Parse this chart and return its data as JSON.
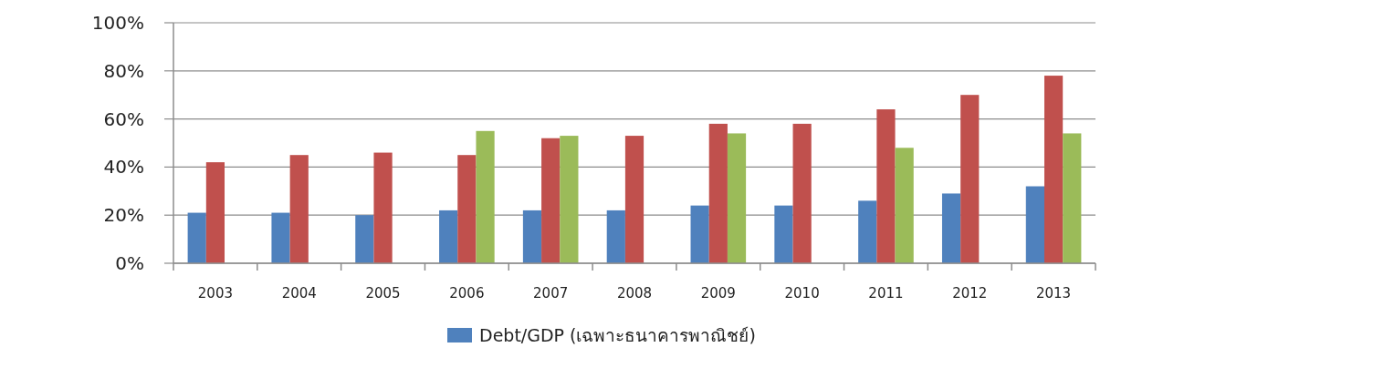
{
  "chart_data": {
    "type": "bar",
    "categories": [
      "2003",
      "2004",
      "2005",
      "2006",
      "2007",
      "2008",
      "2009",
      "2010",
      "2011",
      "2012",
      "2013"
    ],
    "series": [
      {
        "name": "Debt/GDP (เฉพาะธนาคารพาณิชย์)",
        "color": "#4f81bd",
        "values": [
          21,
          21,
          20,
          22,
          22,
          22,
          24,
          24,
          26,
          29,
          32
        ]
      },
      {
        "color": "#c0504d",
        "values": [
          42,
          45,
          46,
          45,
          52,
          53,
          58,
          58,
          64,
          70,
          78
        ]
      },
      {
        "color": "#9bbb59",
        "values": [
          null,
          null,
          null,
          55,
          53,
          null,
          54,
          null,
          48,
          null,
          54
        ]
      }
    ],
    "ylim": [
      0,
      100
    ],
    "yticks": [
      {
        "value": 0,
        "label": "0%"
      },
      {
        "value": 20,
        "label": "20%"
      },
      {
        "value": 40,
        "label": "40%"
      },
      {
        "value": 60,
        "label": "60%"
      },
      {
        "value": 80,
        "label": "80%"
      },
      {
        "value": 100,
        "label": "100%"
      }
    ],
    "grid": "y",
    "legend": "bottom"
  }
}
